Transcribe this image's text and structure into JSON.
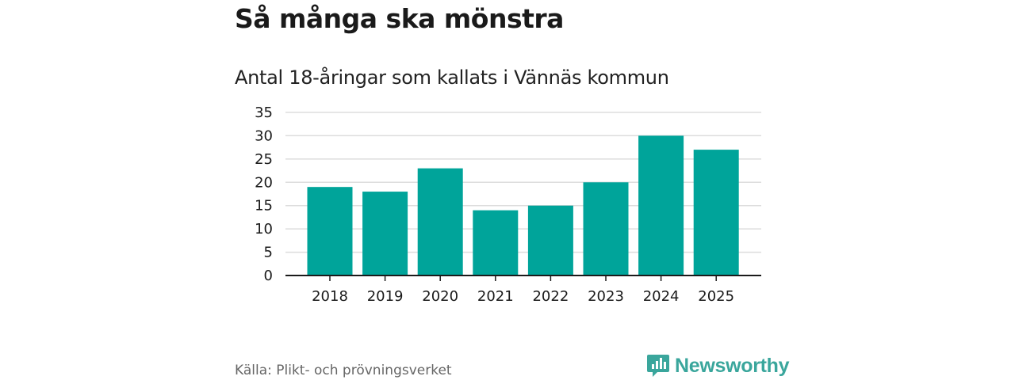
{
  "title": "Så många ska mönstra",
  "subtitle": "Antal 18-åringar som kallats i Vännäs kommun",
  "source": "Källa: Plikt- och prövningsverket",
  "brand": "Newsworthy",
  "colors": {
    "bar": "#00a49a",
    "grid": "#dddddd",
    "axis": "#1a1a1a",
    "brand": "#3aa69c"
  },
  "chart_data": {
    "type": "bar",
    "title": "Så många ska mönstra",
    "subtitle": "Antal 18-åringar som kallats i Vännäs kommun",
    "xlabel": "",
    "ylabel": "",
    "categories": [
      "2018",
      "2019",
      "2020",
      "2021",
      "2022",
      "2023",
      "2024",
      "2025"
    ],
    "values": [
      19,
      18,
      23,
      14,
      15,
      20,
      30,
      27
    ],
    "yticks": [
      0,
      5,
      10,
      15,
      20,
      25,
      30,
      35
    ],
    "ylim": [
      0,
      35
    ],
    "grid": true
  }
}
